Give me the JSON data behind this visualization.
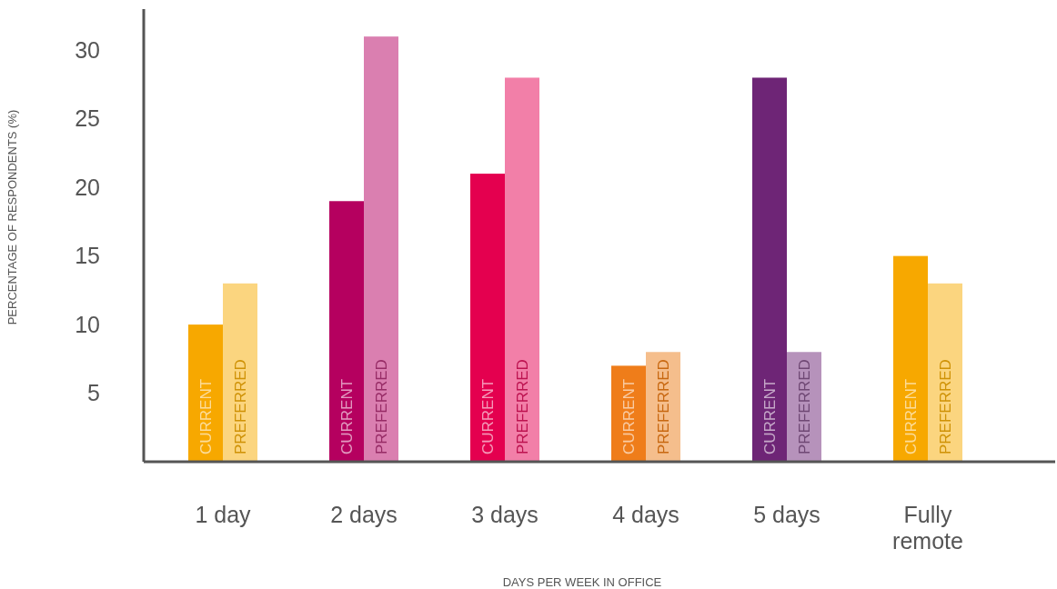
{
  "chart_data": {
    "type": "bar",
    "xlabel": "DAYS PER WEEK IN OFFICE",
    "ylabel": "PERCENTAGE OF RESPONDENTS (%)",
    "categories": [
      "1 day",
      "2 days",
      "3 days",
      "4 days",
      "5 days",
      "Fully remote"
    ],
    "series": [
      {
        "name": "CURRENT",
        "colors": [
          "#f7a800",
          "#b5005f",
          "#e4004f",
          "#ef7d1a",
          "#6e2576",
          "#f7a800"
        ],
        "values": [
          10,
          19,
          21,
          7,
          28,
          15
        ]
      },
      {
        "name": "PREFERRED",
        "colors": [
          "#fbd57f",
          "#da7fb0",
          "#f27fa8",
          "#f5be8c",
          "#b692bb",
          "#fbd57f"
        ],
        "values": [
          13,
          31,
          28,
          8,
          8,
          13
        ]
      }
    ],
    "ylim": [
      0,
      33
    ],
    "yticks": [
      5,
      10,
      15,
      20,
      25,
      30
    ],
    "grid": false
  }
}
